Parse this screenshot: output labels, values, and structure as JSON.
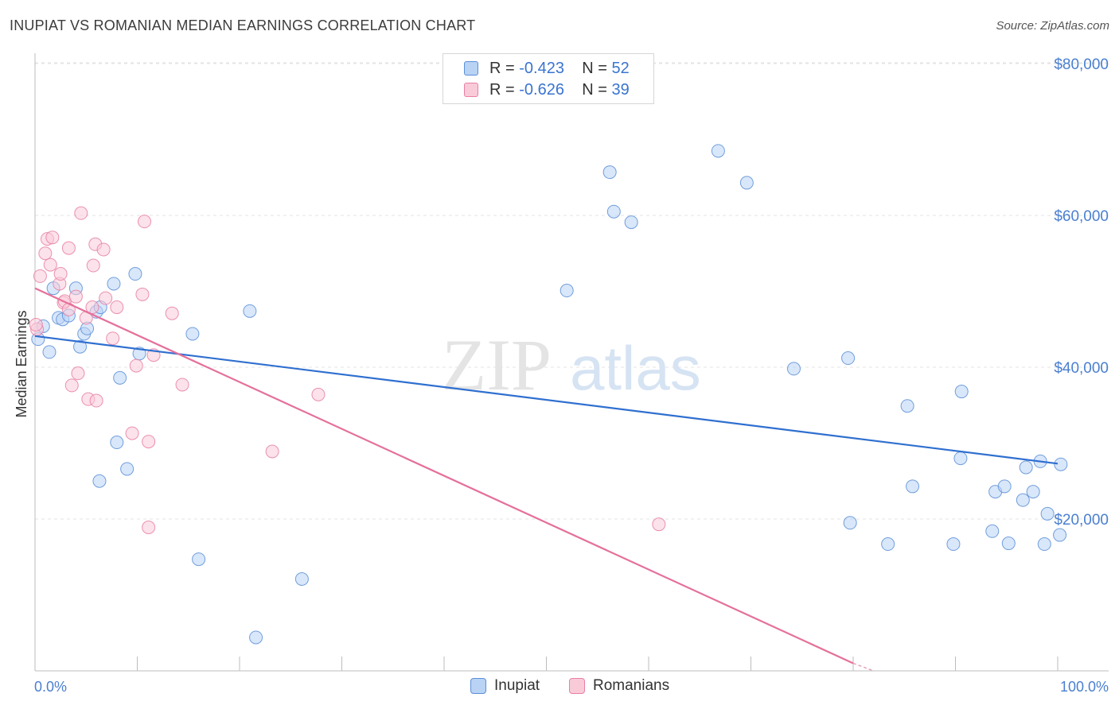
{
  "title": "INUPIAT VS ROMANIAN MEDIAN EARNINGS CORRELATION CHART",
  "source": "Source: ZipAtlas.com",
  "watermark": {
    "zip": "ZIP",
    "atlas": "atlas"
  },
  "legend_stats": [
    {
      "r_label": "R = ",
      "r_value": "-0.423",
      "n_label": "N = ",
      "n_value": "52",
      "color": "#5b8fd6",
      "fill": "#b9d3f5"
    },
    {
      "r_label": "R = ",
      "r_value": "-0.626",
      "n_label": "N = ",
      "n_value": "39",
      "color": "#e87fa3",
      "fill": "#f9cbd9"
    }
  ],
  "chart_data": {
    "type": "scatter",
    "title": "INUPIAT VS ROMANIAN MEDIAN EARNINGS CORRELATION CHART",
    "xlabel": "",
    "ylabel": "Median Earnings",
    "xlim": [
      0,
      100
    ],
    "ylim": [
      0,
      80000
    ],
    "x_tick_labels": [
      "0.0%",
      "100.0%"
    ],
    "y_ticks": [
      20000,
      40000,
      60000,
      80000
    ],
    "y_tick_labels": [
      "$20,000",
      "$40,000",
      "$60,000",
      "$80,000"
    ],
    "grid": true,
    "legend": "bottom-center",
    "series": [
      {
        "name": "Inupiat",
        "color": "#5b8fd6",
        "fill": "#b9d3f5",
        "trend": {
          "x": [
            0,
            100
          ],
          "y": [
            44100,
            27300
          ]
        },
        "points": [
          [
            0.3,
            43700
          ],
          [
            0.8,
            45400
          ],
          [
            1.4,
            42000
          ],
          [
            1.8,
            50400
          ],
          [
            2.3,
            46500
          ],
          [
            2.7,
            46300
          ],
          [
            3.3,
            46800
          ],
          [
            4.0,
            50400
          ],
          [
            4.4,
            42700
          ],
          [
            4.8,
            44400
          ],
          [
            5.1,
            45100
          ],
          [
            6.0,
            47300
          ],
          [
            6.4,
            47900
          ],
          [
            7.7,
            51000
          ],
          [
            8.0,
            30100
          ],
          [
            8.3,
            38600
          ],
          [
            9.0,
            26600
          ],
          [
            9.8,
            52300
          ],
          [
            10.2,
            41800
          ],
          [
            6.3,
            25000
          ],
          [
            15.4,
            44400
          ],
          [
            16.0,
            14700
          ],
          [
            21.0,
            47400
          ],
          [
            21.6,
            4400
          ],
          [
            26.1,
            12100
          ],
          [
            52.0,
            50100
          ],
          [
            56.2,
            65700
          ],
          [
            56.6,
            60500
          ],
          [
            58.3,
            59100
          ],
          [
            66.8,
            68500
          ],
          [
            69.6,
            64300
          ],
          [
            74.2,
            39800
          ],
          [
            79.5,
            41200
          ],
          [
            79.7,
            19500
          ],
          [
            83.4,
            16700
          ],
          [
            85.3,
            34900
          ],
          [
            85.8,
            24300
          ],
          [
            89.8,
            16700
          ],
          [
            90.6,
            36800
          ],
          [
            90.5,
            28000
          ],
          [
            93.6,
            18400
          ],
          [
            93.9,
            23600
          ],
          [
            94.8,
            24300
          ],
          [
            95.2,
            16800
          ],
          [
            96.6,
            22500
          ],
          [
            96.9,
            26800
          ],
          [
            97.6,
            23600
          ],
          [
            98.3,
            27600
          ],
          [
            98.7,
            16700
          ],
          [
            99.0,
            20700
          ],
          [
            100.2,
            17900
          ],
          [
            100.3,
            27200
          ]
        ]
      },
      {
        "name": "Romanians",
        "color": "#e87fa3",
        "fill": "#f9cbd9",
        "trend": {
          "x": [
            0,
            80
          ],
          "y": [
            50400,
            1000
          ]
        },
        "trend_dashed": {
          "x": [
            80,
            82
          ],
          "y": [
            1000,
            0
          ]
        },
        "points": [
          [
            0.2,
            45000
          ],
          [
            0.5,
            52000
          ],
          [
            1.0,
            55000
          ],
          [
            1.2,
            56900
          ],
          [
            1.5,
            53500
          ],
          [
            1.7,
            57100
          ],
          [
            2.4,
            51000
          ],
          [
            2.5,
            52300
          ],
          [
            2.8,
            48500
          ],
          [
            2.9,
            48700
          ],
          [
            3.3,
            47600
          ],
          [
            3.3,
            55700
          ],
          [
            3.6,
            37600
          ],
          [
            4.0,
            49300
          ],
          [
            4.2,
            39200
          ],
          [
            4.5,
            60300
          ],
          [
            5.0,
            46500
          ],
          [
            5.2,
            35800
          ],
          [
            5.6,
            47900
          ],
          [
            5.7,
            53400
          ],
          [
            5.9,
            56200
          ],
          [
            6.0,
            35600
          ],
          [
            6.7,
            55500
          ],
          [
            6.9,
            49100
          ],
          [
            7.6,
            43800
          ],
          [
            8.0,
            47900
          ],
          [
            9.5,
            31300
          ],
          [
            9.9,
            40200
          ],
          [
            10.5,
            49600
          ],
          [
            10.7,
            59200
          ],
          [
            11.1,
            18900
          ],
          [
            11.1,
            30200
          ],
          [
            11.6,
            41600
          ],
          [
            13.4,
            47100
          ],
          [
            14.4,
            37700
          ],
          [
            23.2,
            28900
          ],
          [
            27.7,
            36400
          ],
          [
            61.0,
            19300
          ],
          [
            0.1,
            45600
          ]
        ]
      }
    ]
  }
}
